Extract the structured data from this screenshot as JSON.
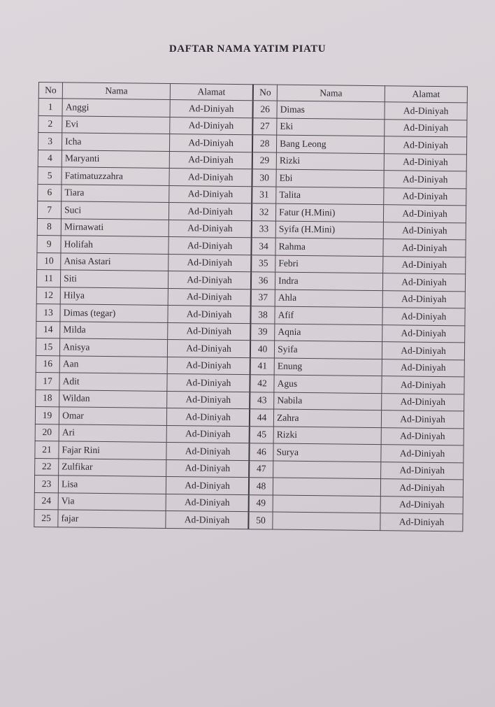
{
  "title": "DAFTAR NAMA YATIM PIATU",
  "headers": {
    "no": "No",
    "nama": "Nama",
    "alamat": "Alamat"
  },
  "rows": [
    {
      "no": "1",
      "nama": "Anggi",
      "alamat": "Ad-Diniyah"
    },
    {
      "no": "2",
      "nama": "Evi",
      "alamat": "Ad-Diniyah"
    },
    {
      "no": "3",
      "nama": "Icha",
      "alamat": "Ad-Diniyah"
    },
    {
      "no": "4",
      "nama": "Maryanti",
      "alamat": "Ad-Diniyah"
    },
    {
      "no": "5",
      "nama": "Fatimatuzzahra",
      "alamat": "Ad-Diniyah"
    },
    {
      "no": "6",
      "nama": "Tiara",
      "alamat": "Ad-Diniyah"
    },
    {
      "no": "7",
      "nama": "Suci",
      "alamat": "Ad-Diniyah"
    },
    {
      "no": "8",
      "nama": "Mirnawati",
      "alamat": "Ad-Diniyah"
    },
    {
      "no": "9",
      "nama": "Holifah",
      "alamat": "Ad-Diniyah"
    },
    {
      "no": "10",
      "nama": "Anisa Astari",
      "alamat": "Ad-Diniyah"
    },
    {
      "no": "11",
      "nama": "Siti",
      "alamat": "Ad-Diniyah"
    },
    {
      "no": "12",
      "nama": "Hilya",
      "alamat": "Ad-Diniyah"
    },
    {
      "no": "13",
      "nama": "Dimas (tegar)",
      "alamat": "Ad-Diniyah"
    },
    {
      "no": "14",
      "nama": "Milda",
      "alamat": "Ad-Diniyah"
    },
    {
      "no": "15",
      "nama": "Anisya",
      "alamat": "Ad-Diniyah"
    },
    {
      "no": "16",
      "nama": "Aan",
      "alamat": "Ad-Diniyah"
    },
    {
      "no": "17",
      "nama": "Adit",
      "alamat": "Ad-Diniyah"
    },
    {
      "no": "18",
      "nama": "Wildan",
      "alamat": "Ad-Diniyah"
    },
    {
      "no": "19",
      "nama": "Omar",
      "alamat": "Ad-Diniyah"
    },
    {
      "no": "20",
      "nama": "Ari",
      "alamat": "Ad-Diniyah"
    },
    {
      "no": "21",
      "nama": "Fajar Rini",
      "alamat": "Ad-Diniyah"
    },
    {
      "no": "22",
      "nama": "Zulfikar",
      "alamat": "Ad-Diniyah"
    },
    {
      "no": "23",
      "nama": "Lisa",
      "alamat": "Ad-Diniyah"
    },
    {
      "no": "24",
      "nama": "Via",
      "alamat": "Ad-Diniyah"
    },
    {
      "no": "25",
      "nama": "fajar",
      "alamat": "Ad-Diniyah"
    },
    {
      "no": "26",
      "nama": "Dimas",
      "alamat": "Ad-Diniyah"
    },
    {
      "no": "27",
      "nama": "Eki",
      "alamat": "Ad-Diniyah"
    },
    {
      "no": "28",
      "nama": "Bang Leong",
      "alamat": "Ad-Diniyah"
    },
    {
      "no": "29",
      "nama": "Rizki",
      "alamat": "Ad-Diniyah"
    },
    {
      "no": "30",
      "nama": "Ebi",
      "alamat": "Ad-Diniyah"
    },
    {
      "no": "31",
      "nama": "Talita",
      "alamat": "Ad-Diniyah"
    },
    {
      "no": "32",
      "nama": "Fatur (H.Mini)",
      "alamat": "Ad-Diniyah"
    },
    {
      "no": "33",
      "nama": "Syifa (H.Mini)",
      "alamat": "Ad-Diniyah"
    },
    {
      "no": "34",
      "nama": "Rahma",
      "alamat": "Ad-Diniyah"
    },
    {
      "no": "35",
      "nama": "Febri",
      "alamat": "Ad-Diniyah"
    },
    {
      "no": "36",
      "nama": "Indra",
      "alamat": "Ad-Diniyah"
    },
    {
      "no": "37",
      "nama": "Ahla",
      "alamat": "Ad-Diniyah"
    },
    {
      "no": "38",
      "nama": "Afif",
      "alamat": "Ad-Diniyah"
    },
    {
      "no": "39",
      "nama": "Aqnia",
      "alamat": "Ad-Diniyah"
    },
    {
      "no": "40",
      "nama": "Syifa",
      "alamat": "Ad-Diniyah"
    },
    {
      "no": "41",
      "nama": "Enung",
      "alamat": "Ad-Diniyah"
    },
    {
      "no": "42",
      "nama": "Agus",
      "alamat": "Ad-Diniyah"
    },
    {
      "no": "43",
      "nama": "Nabila",
      "alamat": "Ad-Diniyah"
    },
    {
      "no": "44",
      "nama": "Zahra",
      "alamat": "Ad-Diniyah"
    },
    {
      "no": "45",
      "nama": "Rizki",
      "alamat": "Ad-Diniyah"
    },
    {
      "no": "46",
      "nama": "Surya",
      "alamat": "Ad-Diniyah"
    },
    {
      "no": "47",
      "nama": "",
      "alamat": "Ad-Diniyah"
    },
    {
      "no": "48",
      "nama": "",
      "alamat": "Ad-Diniyah"
    },
    {
      "no": "49",
      "nama": "",
      "alamat": "Ad-Diniyah"
    },
    {
      "no": "50",
      "nama": "",
      "alamat": "Ad-Diniyah"
    }
  ]
}
